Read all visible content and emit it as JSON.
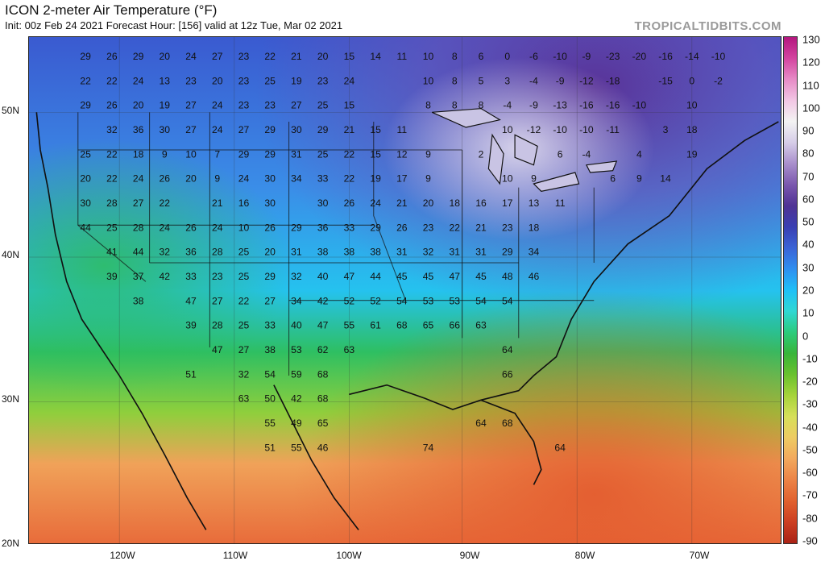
{
  "header": {
    "title": "ICON 2-meter Air Temperature (°F)",
    "subtitle": "Init: 00z Feb 24 2021   Forecast Hour: [156]   valid at 12z Tue, Mar 02 2021",
    "brand": "TROPICALTIDBITS.COM"
  },
  "map": {
    "lat_labels": [
      "50N",
      "40N",
      "30N",
      "20N"
    ],
    "lon_labels": [
      "120W",
      "110W",
      "100W",
      "90W",
      "80W",
      "70W"
    ],
    "grid": true,
    "station_values": [
      [
        "29",
        30,
        12
      ],
      [
        "26",
        44,
        12
      ],
      [
        "29",
        58,
        12
      ],
      [
        "20",
        72,
        12
      ],
      [
        "24",
        86,
        12
      ],
      [
        "27",
        100,
        12
      ],
      [
        "23",
        114,
        12
      ],
      [
        "22",
        128,
        12
      ],
      [
        "21",
        142,
        12
      ],
      [
        "20",
        156,
        12
      ],
      [
        "15",
        170,
        12
      ],
      [
        "14",
        184,
        12
      ],
      [
        "11",
        198,
        12
      ],
      [
        "10",
        212,
        12
      ],
      [
        "8",
        226,
        12
      ],
      [
        "6",
        240,
        12
      ],
      [
        "0",
        254,
        12
      ],
      [
        "-6",
        268,
        12
      ],
      [
        "-10",
        282,
        12
      ],
      [
        "-9",
        296,
        12
      ],
      [
        "-23",
        310,
        12
      ],
      [
        "-20",
        324,
        12
      ],
      [
        "-16",
        338,
        12
      ],
      [
        "-14",
        352,
        12
      ],
      [
        "-10",
        366,
        12
      ],
      [
        "22",
        30,
        25
      ],
      [
        "22",
        44,
        25
      ],
      [
        "24",
        58,
        25
      ],
      [
        "13",
        72,
        25
      ],
      [
        "23",
        86,
        25
      ],
      [
        "20",
        100,
        25
      ],
      [
        "23",
        114,
        25
      ],
      [
        "25",
        128,
        25
      ],
      [
        "19",
        142,
        25
      ],
      [
        "23",
        156,
        25
      ],
      [
        "24",
        170,
        25
      ],
      [
        "10",
        212,
        25
      ],
      [
        "8",
        226,
        25
      ],
      [
        "5",
        240,
        25
      ],
      [
        "3",
        254,
        25
      ],
      [
        "-4",
        268,
        25
      ],
      [
        "-9",
        282,
        25
      ],
      [
        "-12",
        296,
        25
      ],
      [
        "-18",
        310,
        25
      ],
      [
        "-15",
        338,
        25
      ],
      [
        "0",
        352,
        25
      ],
      [
        "-2",
        366,
        25
      ],
      [
        "29",
        30,
        38
      ],
      [
        "26",
        44,
        38
      ],
      [
        "20",
        58,
        38
      ],
      [
        "19",
        72,
        38
      ],
      [
        "27",
        86,
        38
      ],
      [
        "24",
        100,
        38
      ],
      [
        "23",
        114,
        38
      ],
      [
        "23",
        128,
        38
      ],
      [
        "27",
        142,
        38
      ],
      [
        "25",
        156,
        38
      ],
      [
        "15",
        170,
        38
      ],
      [
        "8",
        212,
        38
      ],
      [
        "8",
        226,
        38
      ],
      [
        "8",
        240,
        38
      ],
      [
        "-4",
        254,
        38
      ],
      [
        "-9",
        268,
        38
      ],
      [
        "-13",
        282,
        38
      ],
      [
        "-16",
        296,
        38
      ],
      [
        "-16",
        310,
        38
      ],
      [
        "-10",
        324,
        38
      ],
      [
        "10",
        352,
        38
      ],
      [
        "32",
        44,
        51
      ],
      [
        "36",
        58,
        51
      ],
      [
        "30",
        72,
        51
      ],
      [
        "27",
        86,
        51
      ],
      [
        "24",
        100,
        51
      ],
      [
        "27",
        114,
        51
      ],
      [
        "29",
        128,
        51
      ],
      [
        "30",
        142,
        51
      ],
      [
        "29",
        156,
        51
      ],
      [
        "21",
        170,
        51
      ],
      [
        "15",
        184,
        51
      ],
      [
        "11",
        198,
        51
      ],
      [
        "10",
        254,
        51
      ],
      [
        "-12",
        268,
        51
      ],
      [
        "-10",
        282,
        51
      ],
      [
        "-10",
        296,
        51
      ],
      [
        "-11",
        310,
        51
      ],
      [
        "3",
        338,
        51
      ],
      [
        "18",
        352,
        51
      ],
      [
        "25",
        30,
        64
      ],
      [
        "22",
        44,
        64
      ],
      [
        "18",
        58,
        64
      ],
      [
        "9",
        72,
        64
      ],
      [
        "10",
        86,
        64
      ],
      [
        "7",
        100,
        64
      ],
      [
        "29",
        114,
        64
      ],
      [
        "29",
        128,
        64
      ],
      [
        "31",
        142,
        64
      ],
      [
        "25",
        156,
        64
      ],
      [
        "22",
        170,
        64
      ],
      [
        "15",
        184,
        64
      ],
      [
        "12",
        198,
        64
      ],
      [
        "9",
        212,
        64
      ],
      [
        "2",
        240,
        64
      ],
      [
        "6",
        282,
        64
      ],
      [
        "-4",
        296,
        64
      ],
      [
        "4",
        324,
        64
      ],
      [
        "19",
        352,
        64
      ],
      [
        "20",
        30,
        77
      ],
      [
        "22",
        44,
        77
      ],
      [
        "24",
        58,
        77
      ],
      [
        "26",
        72,
        77
      ],
      [
        "20",
        86,
        77
      ],
      [
        "9",
        100,
        77
      ],
      [
        "24",
        114,
        77
      ],
      [
        "30",
        128,
        77
      ],
      [
        "34",
        142,
        77
      ],
      [
        "33",
        156,
        77
      ],
      [
        "22",
        170,
        77
      ],
      [
        "19",
        184,
        77
      ],
      [
        "17",
        198,
        77
      ],
      [
        "9",
        212,
        77
      ],
      [
        "10",
        254,
        77
      ],
      [
        "9",
        268,
        77
      ],
      [
        "6",
        310,
        77
      ],
      [
        "9",
        324,
        77
      ],
      [
        "14",
        338,
        77
      ],
      [
        "30",
        30,
        90
      ],
      [
        "28",
        44,
        90
      ],
      [
        "27",
        58,
        90
      ],
      [
        "22",
        72,
        90
      ],
      [
        "21",
        100,
        90
      ],
      [
        "16",
        114,
        90
      ],
      [
        "30",
        128,
        90
      ],
      [
        "30",
        156,
        90
      ],
      [
        "26",
        170,
        90
      ],
      [
        "24",
        184,
        90
      ],
      [
        "21",
        198,
        90
      ],
      [
        "20",
        212,
        90
      ],
      [
        "18",
        226,
        90
      ],
      [
        "16",
        240,
        90
      ],
      [
        "17",
        254,
        90
      ],
      [
        "13",
        268,
        90
      ],
      [
        "11",
        282,
        90
      ],
      [
        "44",
        30,
        103
      ],
      [
        "25",
        44,
        103
      ],
      [
        "28",
        58,
        103
      ],
      [
        "24",
        72,
        103
      ],
      [
        "26",
        86,
        103
      ],
      [
        "24",
        100,
        103
      ],
      [
        "10",
        114,
        103
      ],
      [
        "26",
        128,
        103
      ],
      [
        "29",
        142,
        103
      ],
      [
        "36",
        156,
        103
      ],
      [
        "33",
        170,
        103
      ],
      [
        "29",
        184,
        103
      ],
      [
        "26",
        198,
        103
      ],
      [
        "23",
        212,
        103
      ],
      [
        "22",
        226,
        103
      ],
      [
        "21",
        240,
        103
      ],
      [
        "23",
        254,
        103
      ],
      [
        "18",
        268,
        103
      ],
      [
        "41",
        44,
        116
      ],
      [
        "44",
        58,
        116
      ],
      [
        "32",
        72,
        116
      ],
      [
        "36",
        86,
        116
      ],
      [
        "28",
        100,
        116
      ],
      [
        "25",
        114,
        116
      ],
      [
        "20",
        128,
        116
      ],
      [
        "31",
        142,
        116
      ],
      [
        "38",
        156,
        116
      ],
      [
        "38",
        170,
        116
      ],
      [
        "38",
        184,
        116
      ],
      [
        "31",
        198,
        116
      ],
      [
        "32",
        212,
        116
      ],
      [
        "31",
        226,
        116
      ],
      [
        "31",
        240,
        116
      ],
      [
        "29",
        254,
        116
      ],
      [
        "34",
        268,
        116
      ],
      [
        "39",
        44,
        129
      ],
      [
        "37",
        58,
        129
      ],
      [
        "42",
        72,
        129
      ],
      [
        "33",
        86,
        129
      ],
      [
        "23",
        100,
        129
      ],
      [
        "25",
        114,
        129
      ],
      [
        "29",
        128,
        129
      ],
      [
        "32",
        142,
        129
      ],
      [
        "40",
        156,
        129
      ],
      [
        "47",
        170,
        129
      ],
      [
        "44",
        184,
        129
      ],
      [
        "45",
        198,
        129
      ],
      [
        "45",
        212,
        129
      ],
      [
        "47",
        226,
        129
      ],
      [
        "45",
        240,
        129
      ],
      [
        "48",
        254,
        129
      ],
      [
        "46",
        268,
        129
      ],
      [
        "38",
        58,
        142
      ],
      [
        "47",
        86,
        142
      ],
      [
        "27",
        100,
        142
      ],
      [
        "22",
        114,
        142
      ],
      [
        "27",
        128,
        142
      ],
      [
        "34",
        142,
        142
      ],
      [
        "42",
        156,
        142
      ],
      [
        "52",
        170,
        142
      ],
      [
        "52",
        184,
        142
      ],
      [
        "54",
        198,
        142
      ],
      [
        "53",
        212,
        142
      ],
      [
        "53",
        226,
        142
      ],
      [
        "54",
        240,
        142
      ],
      [
        "54",
        254,
        142
      ],
      [
        "39",
        86,
        155
      ],
      [
        "28",
        100,
        155
      ],
      [
        "25",
        114,
        155
      ],
      [
        "33",
        128,
        155
      ],
      [
        "40",
        142,
        155
      ],
      [
        "47",
        156,
        155
      ],
      [
        "55",
        170,
        155
      ],
      [
        "61",
        184,
        155
      ],
      [
        "68",
        198,
        155
      ],
      [
        "65",
        212,
        155
      ],
      [
        "66",
        226,
        155
      ],
      [
        "63",
        240,
        155
      ],
      [
        "47",
        100,
        168
      ],
      [
        "27",
        114,
        168
      ],
      [
        "38",
        128,
        168
      ],
      [
        "53",
        142,
        168
      ],
      [
        "62",
        156,
        168
      ],
      [
        "63",
        170,
        168
      ],
      [
        "64",
        254,
        168
      ],
      [
        "51",
        86,
        181
      ],
      [
        "32",
        114,
        181
      ],
      [
        "54",
        128,
        181
      ],
      [
        "59",
        142,
        181
      ],
      [
        "68",
        156,
        181
      ],
      [
        "66",
        254,
        181
      ],
      [
        "63",
        114,
        194
      ],
      [
        "50",
        128,
        194
      ],
      [
        "42",
        142,
        194
      ],
      [
        "68",
        156,
        194
      ],
      [
        "55",
        128,
        207
      ],
      [
        "49",
        142,
        207
      ],
      [
        "65",
        156,
        207
      ],
      [
        "64",
        240,
        207
      ],
      [
        "68",
        254,
        207
      ],
      [
        "51",
        128,
        220
      ],
      [
        "55",
        142,
        220
      ],
      [
        "46",
        156,
        220
      ],
      [
        "74",
        212,
        220
      ],
      [
        "64",
        282,
        220
      ]
    ]
  },
  "colorbar": {
    "labels": [
      "130",
      "120",
      "110",
      "100",
      "90",
      "80",
      "70",
      "60",
      "50",
      "40",
      "30",
      "20",
      "10",
      "0",
      "-10",
      "-20",
      "-30",
      "-40",
      "-50",
      "-60",
      "-70",
      "-80",
      "-90"
    ],
    "stops": [
      "#b4177f",
      "#d3449f",
      "#e68bc6",
      "#f2c6e4",
      "#f3f3f3",
      "#d6cde8",
      "#a98fcc",
      "#7b58ae",
      "#4f3394",
      "#3a3fb2",
      "#3b63d6",
      "#2f8ff0",
      "#1fc0f7",
      "#2fd7d3",
      "#2ccb7c",
      "#38b53a",
      "#69c12e",
      "#a7d43b",
      "#d7df5a",
      "#eecb62",
      "#f2a85d",
      "#ec8346",
      "#e1612f",
      "#cc3f22",
      "#aa2216"
    ]
  }
}
